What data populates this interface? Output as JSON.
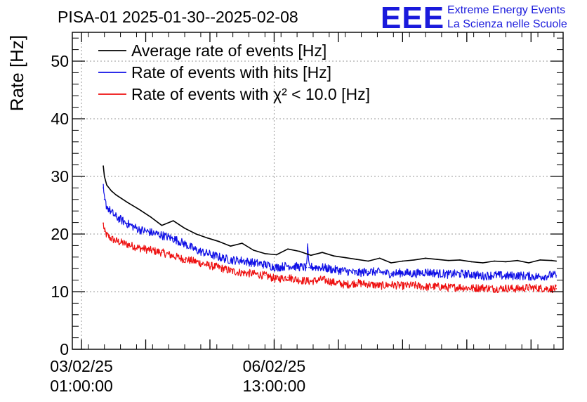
{
  "title": "PISA-01 2025-01-30--2025-02-08",
  "logo": {
    "letters": "EEE",
    "line1": "Extreme Energy Events",
    "line2": "La Scienza nelle Scuole",
    "color": "#1a1adc"
  },
  "chart_data": {
    "type": "line",
    "title": "PISA-01 2025-01-30--2025-02-08",
    "xlabel": "",
    "ylabel": "Rate [Hz]",
    "ylim": [
      0,
      55
    ],
    "yticks": [
      0,
      10,
      20,
      30,
      40,
      50
    ],
    "xlim_hours": [
      -4,
      210
    ],
    "x_unit": "hours since 03/02/25 01:00:00",
    "xticks": [
      {
        "hours": 0,
        "date": "03/02/25",
        "time": "01:00:00"
      },
      {
        "hours": 84,
        "date": "06/02/25",
        "time": "13:00:00"
      }
    ],
    "x_minor_ticks_hours": [
      0,
      28,
      56,
      84,
      112,
      140,
      168,
      196
    ],
    "grid": true,
    "legend_position": "top-left",
    "series": [
      {
        "name": "Average rate of events [Hz]",
        "color": "#000000",
        "noise": 0,
        "x": [
          9.5,
          10,
          11,
          13,
          15,
          20,
          25,
          30,
          35,
          40,
          45,
          50,
          55,
          60,
          65,
          70,
          75,
          80,
          85,
          90,
          95,
          100,
          105,
          110,
          115,
          120,
          125,
          130,
          135,
          140,
          145,
          150,
          155,
          160,
          165,
          170,
          175,
          180,
          185,
          190,
          195,
          200,
          205,
          207
        ],
        "values": [
          31.8,
          30.0,
          28.5,
          27.5,
          26.8,
          25.5,
          24.3,
          23.0,
          21.5,
          22.3,
          21.0,
          20.0,
          19.3,
          18.7,
          17.9,
          18.4,
          17.2,
          16.6,
          16.4,
          17.4,
          17.0,
          16.3,
          16.8,
          16.2,
          15.9,
          15.6,
          15.3,
          15.8,
          15.0,
          15.3,
          15.5,
          15.8,
          15.6,
          15.4,
          15.5,
          15.2,
          15.0,
          15.3,
          15.2,
          15.4,
          15.0,
          15.5,
          15.4,
          15.3
        ]
      },
      {
        "name": "Rate of events with hits [Hz]",
        "color": "#1010e6",
        "noise": 0.75,
        "x": [
          9.5,
          10,
          11,
          13,
          15,
          20,
          25,
          30,
          35,
          40,
          45,
          50,
          55,
          60,
          65,
          70,
          75,
          80,
          85,
          90,
          95,
          98,
          98.6,
          99.2,
          100,
          105,
          110,
          115,
          120,
          125,
          130,
          135,
          140,
          145,
          150,
          155,
          160,
          165,
          170,
          175,
          180,
          185,
          190,
          195,
          200,
          205,
          207
        ],
        "values": [
          28.0,
          26.0,
          24.8,
          23.8,
          23.0,
          21.8,
          20.8,
          20.3,
          19.8,
          19.2,
          18.3,
          17.2,
          16.6,
          16.0,
          15.5,
          15.4,
          15.0,
          14.7,
          14.2,
          14.5,
          14.3,
          14.2,
          17.6,
          14.2,
          14.3,
          14.2,
          13.8,
          13.6,
          13.2,
          13.5,
          13.4,
          13.1,
          13.3,
          13.1,
          13.4,
          13.2,
          13.0,
          13.1,
          13.0,
          12.7,
          12.9,
          12.7,
          12.8,
          12.7,
          12.6,
          12.9,
          12.8
        ]
      },
      {
        "name": "Rate of events with χ² < 10.0 [Hz]",
        "color": "#ee1010",
        "noise": 0.7,
        "x": [
          9.5,
          10,
          11,
          13,
          15,
          20,
          25,
          30,
          35,
          40,
          45,
          50,
          55,
          60,
          65,
          70,
          75,
          80,
          85,
          90,
          95,
          100,
          105,
          110,
          115,
          120,
          125,
          130,
          135,
          140,
          145,
          150,
          155,
          160,
          165,
          170,
          175,
          180,
          185,
          190,
          195,
          200,
          205,
          207
        ],
        "values": [
          21.8,
          20.5,
          19.8,
          19.2,
          18.8,
          18.2,
          17.6,
          17.2,
          16.8,
          16.2,
          15.6,
          15.2,
          14.6,
          14.2,
          13.6,
          13.3,
          13.1,
          12.8,
          12.2,
          12.5,
          12.0,
          11.8,
          12.1,
          11.6,
          11.2,
          11.5,
          11.3,
          11.0,
          11.2,
          11.0,
          11.1,
          10.8,
          10.9,
          10.7,
          10.8,
          10.6,
          10.7,
          10.5,
          10.6,
          10.5,
          10.7,
          10.6,
          10.5,
          10.5
        ]
      }
    ]
  }
}
